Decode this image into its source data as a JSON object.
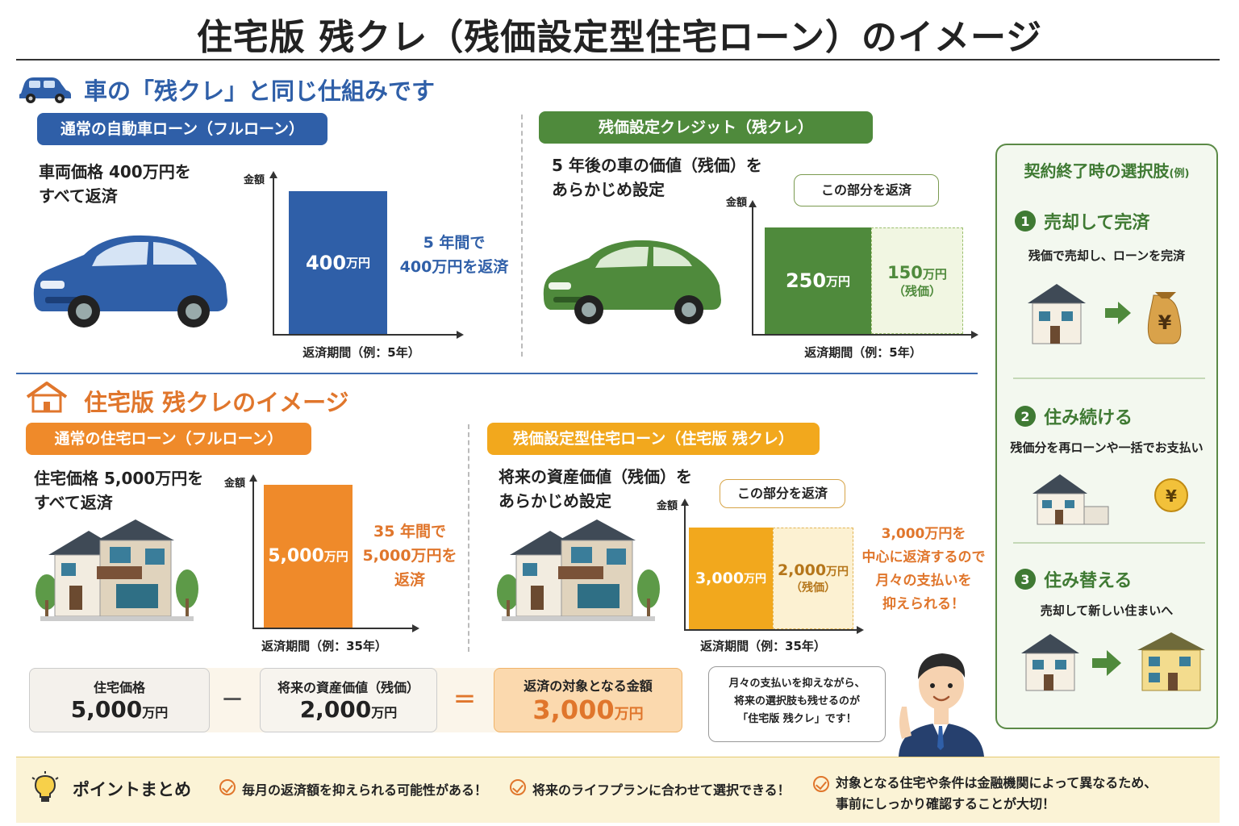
{
  "title": "住宅版 残クレ（残価設定型住宅ローン）のイメージ",
  "car_section": {
    "title": "車の「残クレ」と同じ仕組みです",
    "full": {
      "pill": "通常の自動車ローン（フルローン）",
      "desc1": "車両価格 400万円を",
      "desc2": "すべて返済",
      "ylabel": "金額",
      "xlabel": "返済期間（例：5年）",
      "bar_value": "400",
      "bar_unit": "万円",
      "note1": "5 年間で",
      "note2": "400万円を返済"
    },
    "residual": {
      "pill": "残価設定クレジット（残クレ）",
      "desc1": "5 年後の車の価値（残価）を",
      "desc2": "あらかじめ設定",
      "ylabel": "金額",
      "xlabel": "返済期間（例：5年）",
      "callout": "この部分を返済",
      "bar1_value": "250",
      "bar1_unit": "万円",
      "bar2_value": "150",
      "bar2_unit": "万円",
      "bar2_sub": "（残価）"
    }
  },
  "house_section": {
    "title": "住宅版 残クレのイメージ",
    "full": {
      "pill": "通常の住宅ローン（フルローン）",
      "desc1": "住宅価格 5,000万円を",
      "desc2": "すべて返済",
      "ylabel": "金額",
      "xlabel": "返済期間（例：35年）",
      "bar_value": "5,000",
      "bar_unit": "万円",
      "note1": "35 年間で",
      "note2": "5,000万円を",
      "note3": "返済"
    },
    "residual": {
      "pill": "残価設定型住宅ローン（住宅版 残クレ）",
      "desc1": "将来の資産価値（残価）を",
      "desc2": "あらかじめ設定",
      "ylabel": "金額",
      "xlabel": "返済期間（例：35年）",
      "callout": "この部分を返済",
      "bar1_value": "3,000",
      "bar1_unit": "万円",
      "bar2_value": "2,000",
      "bar2_unit": "万円",
      "bar2_sub": "（残価）",
      "note1": "3,000万円を",
      "note2": "中心に返済するので",
      "note3": "月々の支払いを",
      "note4": "抑えられる！"
    }
  },
  "equation": {
    "a_label": "住宅価格",
    "a_value": "5,000",
    "a_unit": "万円",
    "minus": "－",
    "b_label": "将来の資産価値（残価）",
    "b_value": "2,000",
    "b_unit": "万円",
    "equals": "＝",
    "c_label": "返済の対象となる金額",
    "c_value": "3,000",
    "c_unit": "万円"
  },
  "speech": {
    "line1": "月々の支払いを抑えながら、",
    "line2": "将来の選択肢も残せるのが",
    "line3": "「住宅版 残クレ」です！"
  },
  "sidebar": {
    "title": "契約終了時の選択肢",
    "title_suffix": "(例)",
    "options": [
      {
        "num": "1",
        "title": "売却して完済",
        "desc": "残価で売却し、ローンを完済"
      },
      {
        "num": "2",
        "title": "住み続ける",
        "desc": "残価分を再ローンや一括でお支払い"
      },
      {
        "num": "3",
        "title": "住み替える",
        "desc": "売却して新しい住まいへ"
      }
    ],
    "yen": "¥"
  },
  "points": {
    "title": "ポイントまとめ",
    "items": [
      "毎月の返済額を抑えられる可能性がある！",
      "将来のライフプランに合わせて選択できる！"
    ],
    "item3_line1": "対象となる住宅や条件は金融機関によって異なるため、",
    "item3_line2": "事前にしっかり確認することが大切！"
  },
  "colors": {
    "blue": "#2f5fa8",
    "green": "#4f8a3c",
    "orange": "#ef8a2a",
    "amber": "#f2a81d"
  },
  "chart_data": [
    {
      "type": "bar",
      "categories": [
        "自動車ローン（フルローン）"
      ],
      "values": [
        400
      ],
      "ylabel": "金額",
      "xlabel": "返済期間（例：5年）"
    },
    {
      "type": "bar",
      "categories": [
        "残価設定クレジット"
      ],
      "series": [
        {
          "name": "",
          "values": [
            250
          ]
        },
        {
          "name": "残価",
          "values": [
            150
          ]
        }
      ],
      "ylabel": "金額",
      "xlabel": "返済期間（例：5年）"
    },
    {
      "type": "bar",
      "categories": [
        "住宅ローン（フルローン）"
      ],
      "values": [
        5000
      ],
      "ylabel": "金額",
      "xlabel": "返済期間（例：35年）"
    },
    {
      "type": "bar",
      "categories": [
        "残価設定型住宅ローン"
      ],
      "series": [
        {
          "name": "",
          "values": [
            3000
          ]
        },
        {
          "name": "残価",
          "values": [
            2000
          ]
        }
      ],
      "ylabel": "金額",
      "xlabel": "返済期間（例：35年）"
    }
  ]
}
